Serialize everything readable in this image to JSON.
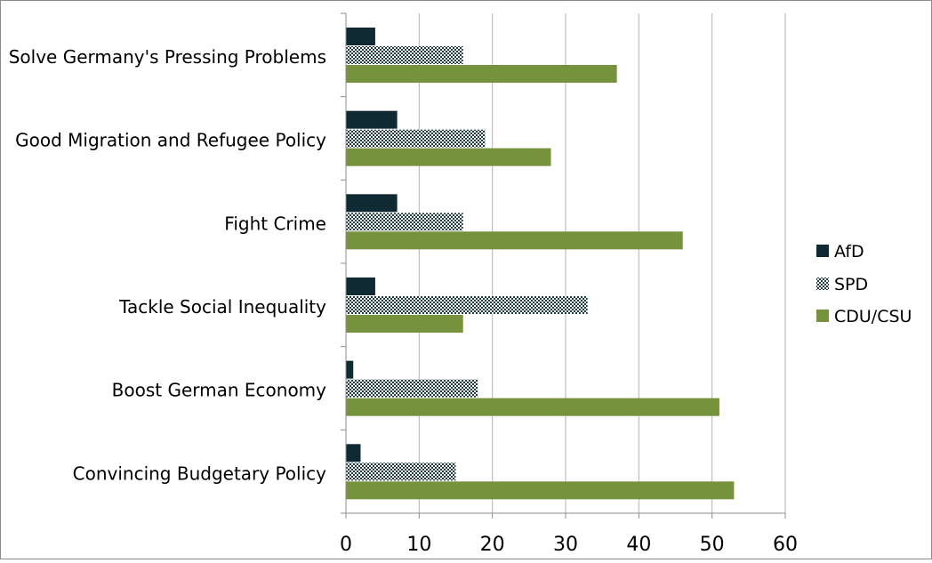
{
  "chart_data": {
    "type": "bar",
    "orientation": "horizontal",
    "title": "",
    "xlabel": "",
    "ylabel": "",
    "categories": [
      "Solve Germany's Pressing Problems",
      "Good Migration and Refugee Policy",
      "Fight Crime",
      "Tackle Social Inequality",
      "Boost German Economy",
      "Convincing Budgetary Policy"
    ],
    "series": [
      {
        "name": "AfD",
        "values": [
          4,
          7,
          7,
          4,
          1,
          2
        ],
        "color": "#0f2a33",
        "pattern": "solid"
      },
      {
        "name": "SPD",
        "values": [
          16,
          19,
          16,
          33,
          18,
          15
        ],
        "color": "#1c3a44",
        "pattern": "checkered"
      },
      {
        "name": "CDU/CSU",
        "values": [
          37,
          28,
          46,
          16,
          51,
          53
        ],
        "color": "#77923c",
        "pattern": "solid"
      }
    ],
    "xlim": [
      0,
      60
    ],
    "xticks": [
      "0",
      "10",
      "20",
      "30",
      "40",
      "50",
      "60"
    ],
    "grid": "vertical",
    "legend_position": "right"
  }
}
